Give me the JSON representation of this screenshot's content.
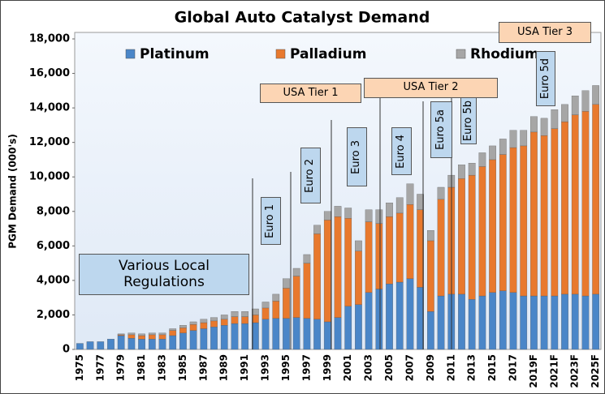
{
  "chart_data": {
    "type": "bar",
    "stacked": true,
    "title": "Global Auto Catalyst Demand",
    "y_label": "PGM Demand (000's)",
    "categories": [
      "1975",
      null,
      "1977",
      null,
      "1979",
      null,
      "1981",
      null,
      "1983",
      null,
      "1985",
      null,
      "1987",
      null,
      "1989",
      null,
      "1991",
      null,
      "1993",
      null,
      "1995",
      null,
      "1997",
      null,
      "1999",
      null,
      "2001",
      null,
      "2003",
      null,
      "2005",
      null,
      "2007",
      null,
      "2009",
      null,
      "2011",
      null,
      "2013",
      null,
      "2015",
      null,
      "2017",
      null,
      "2019F",
      null,
      "2021F",
      null,
      "2023F",
      null,
      "2025F"
    ],
    "series": [
      {
        "name": "Platinum",
        "color": "#4a86c8",
        "values": [
          350,
          450,
          450,
          600,
          800,
          650,
          600,
          600,
          600,
          800,
          950,
          1100,
          1200,
          1300,
          1400,
          1500,
          1500,
          1550,
          1750,
          1800,
          1800,
          1850,
          1800,
          1750,
          1600,
          1850,
          2500,
          2600,
          3300,
          3500,
          3800,
          3900,
          4100,
          3600,
          2200,
          3100,
          3200,
          3200,
          2900,
          3100,
          3300,
          3400,
          3300,
          3100,
          3100,
          3100,
          3100,
          3200,
          3200,
          3100,
          3200
        ]
      },
      {
        "name": "Palladium",
        "color": "#e8792e",
        "values": [
          0,
          0,
          0,
          0,
          50,
          200,
          200,
          250,
          250,
          300,
          300,
          350,
          350,
          350,
          350,
          400,
          400,
          450,
          650,
          1000,
          1750,
          2400,
          3200,
          4950,
          5900,
          5850,
          5100,
          3100,
          4100,
          3800,
          3900,
          4000,
          4300,
          4500,
          4100,
          5600,
          6200,
          6700,
          7200,
          7500,
          7700,
          7900,
          8400,
          8700,
          9500,
          9300,
          9700,
          10000,
          10400,
          10700,
          11000
        ]
      },
      {
        "name": "Rhodium",
        "color": "#a6a6a6",
        "values": [
          0,
          0,
          0,
          0,
          50,
          100,
          100,
          100,
          100,
          100,
          150,
          150,
          200,
          200,
          250,
          300,
          300,
          350,
          350,
          400,
          550,
          450,
          500,
          500,
          500,
          600,
          600,
          600,
          700,
          800,
          800,
          900,
          1200,
          900,
          600,
          700,
          700,
          800,
          700,
          800,
          800,
          900,
          1000,
          900,
          900,
          1000,
          1100,
          1000,
          1100,
          1200,
          1100
        ]
      }
    ],
    "ylim": [
      0,
      18000
    ],
    "yticks": [
      0,
      {
        "value": 2000,
        "label": "2,000"
      },
      {
        "value": 4000,
        "label": "4,000"
      },
      {
        "value": 6000,
        "label": "6,000"
      },
      {
        "value": 8000,
        "label": "8,000"
      },
      {
        "value": 10000,
        "label": "10,000"
      },
      {
        "value": 12000,
        "label": "12,000"
      },
      {
        "value": 14000,
        "label": "14,000"
      },
      {
        "value": 16000,
        "label": "16,000"
      },
      {
        "value": 18000,
        "label": "18,000"
      }
    ],
    "legend": "top",
    "annotations": [
      "Various Local Regulations",
      "Euro 1",
      "Euro 2",
      "Euro 3",
      "Euro 4",
      "Euro 5a",
      "Euro 5b",
      "Euro 5d",
      "USA Tier 1",
      "USA Tier 2",
      "USA Tier 3"
    ]
  }
}
